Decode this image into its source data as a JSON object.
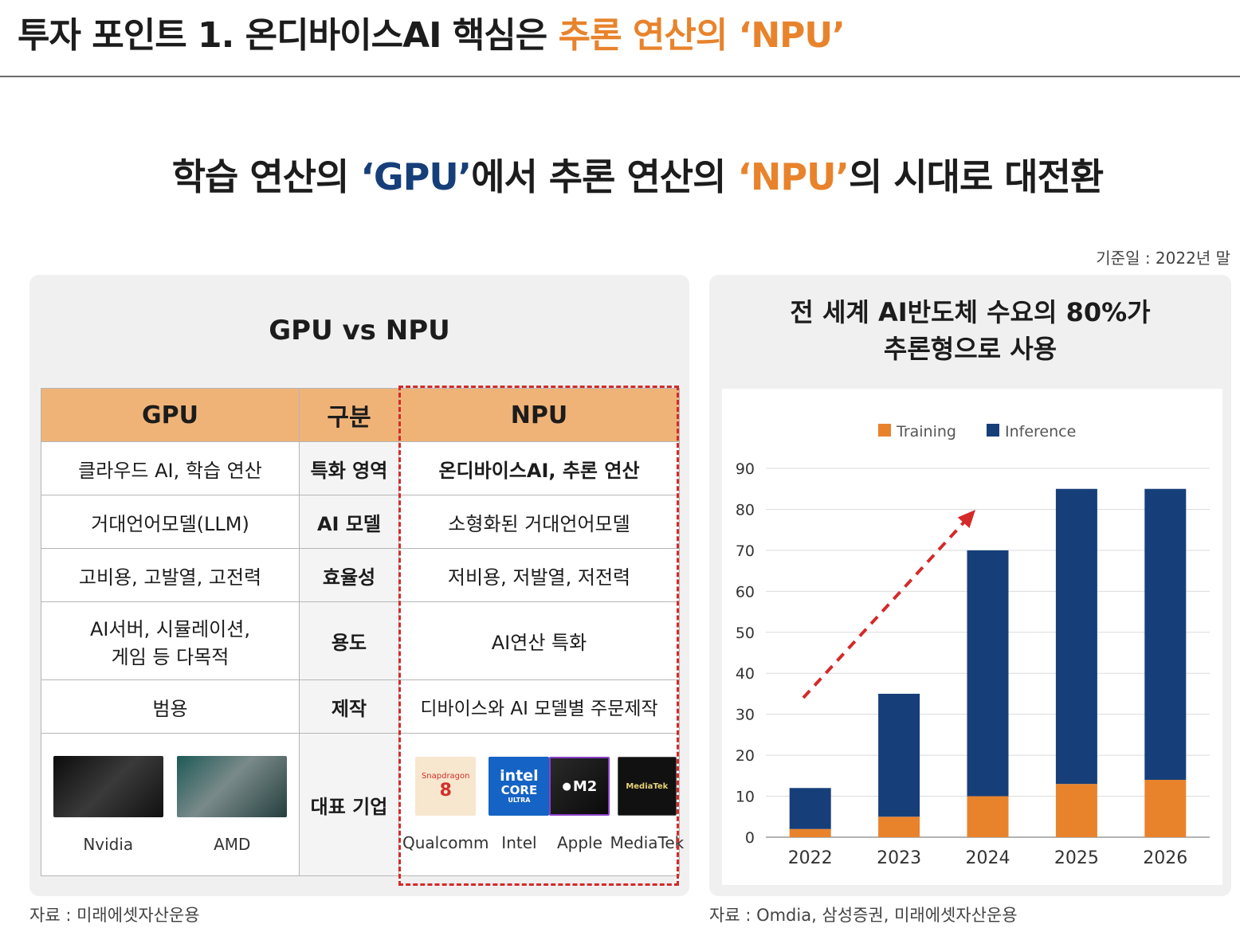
{
  "header": {
    "title_part1": "투자 포인트 1. 온디바이스AI 핵심은 ",
    "title_part2": "추론 연산의 ‘NPU’"
  },
  "subtitle": {
    "part1": "학습 연산의 ",
    "gpu": "‘GPU’",
    "part2": "에서 추론 연산의 ",
    "npu": "‘NPU’",
    "part3": "의 시대로 대전환"
  },
  "basis_date": "기준일 : 2022년 말",
  "left_panel": {
    "title": "GPU vs NPU",
    "headers": [
      "GPU",
      "구분",
      "NPU"
    ],
    "rows": [
      {
        "gpu": "클라우드 AI, 학습 연산",
        "category": "특화 영역",
        "npu": "온디바이스AI, 추론 연산"
      },
      {
        "gpu": "거대언어모델(LLM)",
        "category": "AI 모델",
        "npu": "소형화된 거대언어모델"
      },
      {
        "gpu": "고비용, 고발열, 고전력",
        "category": "효율성",
        "npu": "저비용, 저발열, 저전력"
      },
      {
        "gpu_line1": "AI서버, 시뮬레이션,",
        "gpu_line2": "게임 등 다목적",
        "category": "용도",
        "npu": "AI연산 특화"
      },
      {
        "gpu": "범용",
        "category": "제작",
        "npu": "디바이스와 AI 모델별 주문제작"
      }
    ],
    "representative": {
      "category": "대표 기업",
      "gpu_companies": [
        "Nvidia",
        "AMD"
      ],
      "npu_companies": [
        "Qualcomm",
        "Intel",
        "Apple",
        "MediaTek"
      ],
      "logo_text": {
        "snapdragon": "Snapdragon",
        "snapdragon_num": "8",
        "intel_top": "intel",
        "intel_mid": "CORE",
        "intel_bot": "ULTRA",
        "apple": "M2",
        "mediatek": "MediaTek"
      }
    },
    "source": "자료 : 미래에셋자산운용"
  },
  "right_panel": {
    "title_line1": "전 세계 AI반도체 수요의 80%가",
    "title_line2": "추론형으로 사용",
    "source": "자료 : Omdia, 삼성증권, 미래에셋자산운용"
  },
  "chart_data": {
    "type": "bar",
    "stacked": true,
    "categories": [
      "2022",
      "2023",
      "2024",
      "2025",
      "2026"
    ],
    "series": [
      {
        "name": "Training",
        "values": [
          2,
          5,
          10,
          13,
          14
        ],
        "color": "#e8832c"
      },
      {
        "name": "Inference",
        "values": [
          10,
          30,
          60,
          72,
          71
        ],
        "color": "#163f7a"
      }
    ],
    "ylim": [
      0,
      90
    ],
    "yticks": [
      0,
      10,
      20,
      30,
      40,
      50,
      60,
      70,
      80,
      90
    ],
    "grid": true,
    "legend_position": "top",
    "annotation": "red dashed upward arrow from 2022 to 2024",
    "arrow_color": "#d42a2a"
  }
}
